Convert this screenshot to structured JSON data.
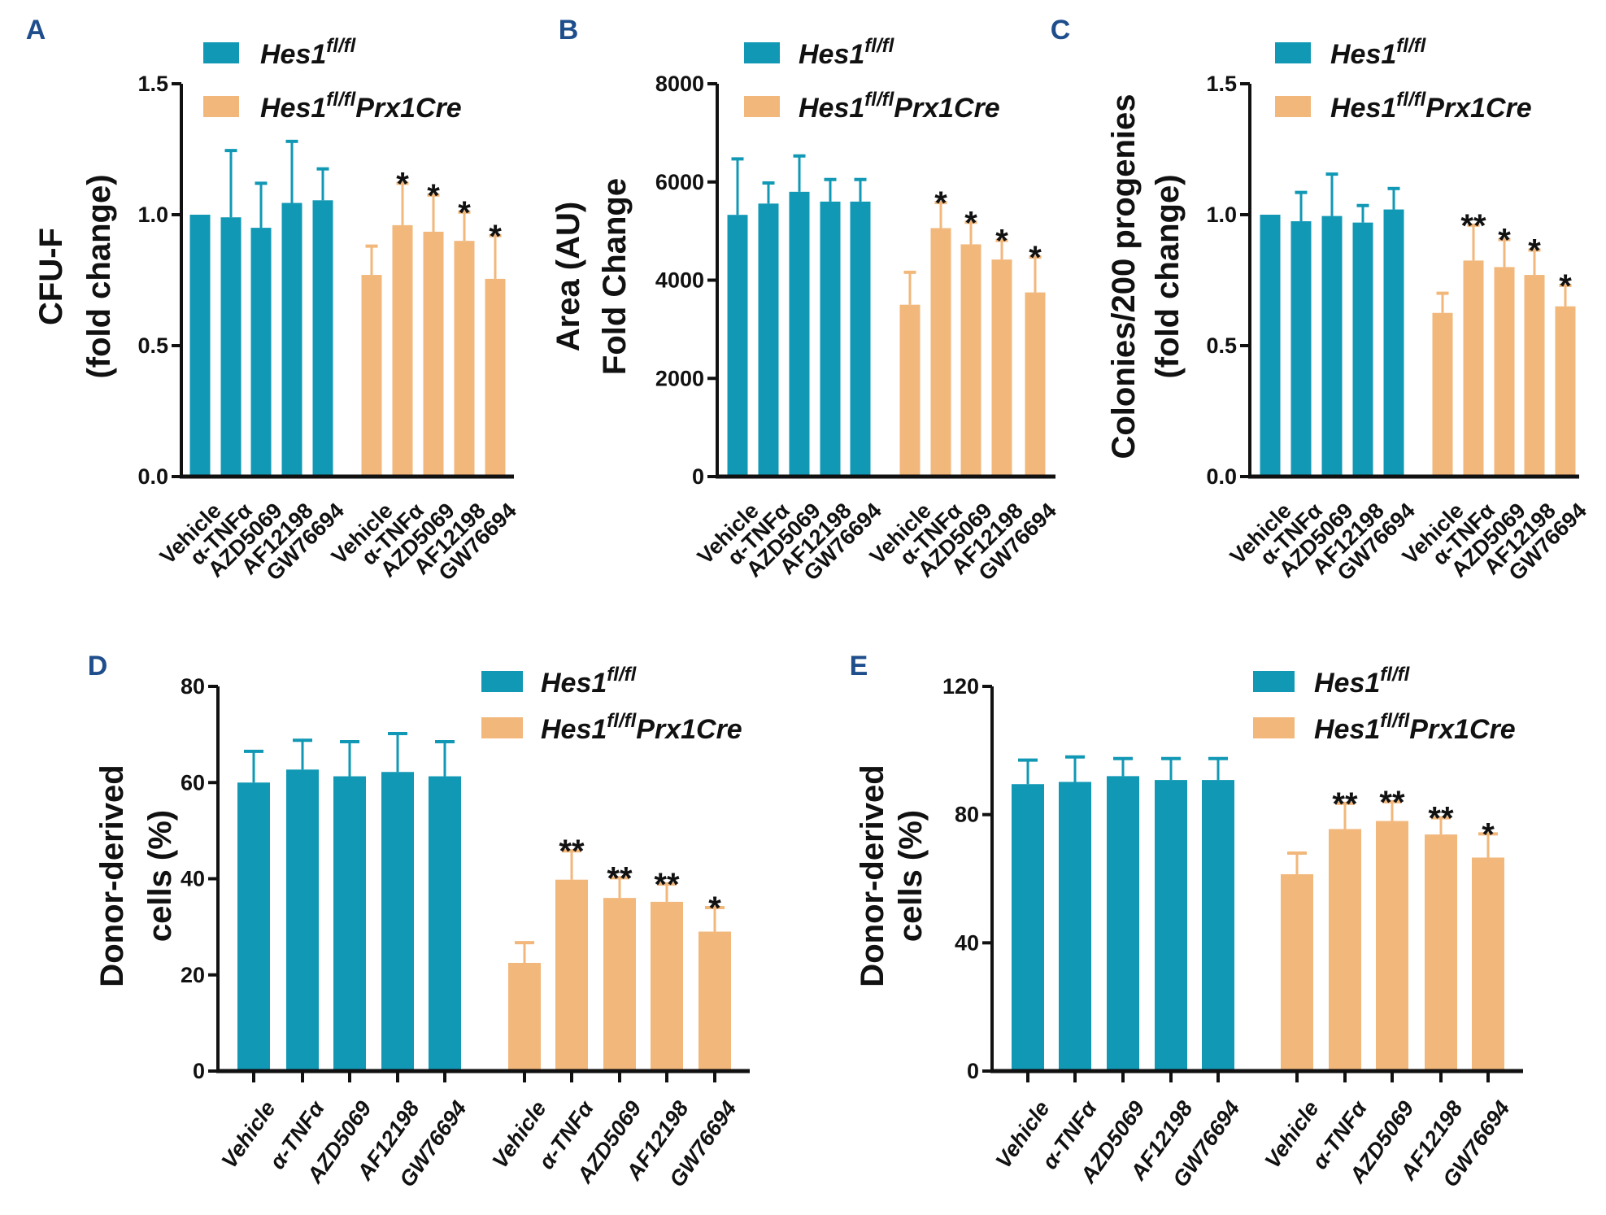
{
  "colors": {
    "hes1_flfl": "#1198b5",
    "hes1_flfl_prx1cre": "#f2b77b",
    "panel_letter": "#1f4e8c"
  },
  "legend": [
    {
      "base": "Hes1",
      "sup": "fl/fl",
      "suffix": ""
    },
    {
      "base": "Hes1",
      "sup": "fl/fl",
      "suffix": "Prx1Cre"
    }
  ],
  "chart_data": [
    {
      "panel": "A",
      "type": "bar",
      "ylabel": [
        "CFU-F",
        "(fold change)"
      ],
      "ylim": [
        0,
        1.5
      ],
      "yticks": [
        "0.0",
        "0.5",
        "1.0",
        "1.5"
      ],
      "ytick_values": [
        0,
        0.5,
        1.0,
        1.5
      ],
      "categories": [
        "Vehicle",
        "α-TNFα",
        "AZD5069",
        "AF12198",
        "GW76694"
      ],
      "series": [
        {
          "name": "Hes1 fl/fl",
          "values": [
            1.0,
            0.99,
            0.95,
            1.045,
            1.055
          ],
          "error_top": [
            1.0,
            1.245,
            1.12,
            1.28,
            1.175
          ],
          "significance": [
            "",
            "",
            "",
            "",
            ""
          ]
        },
        {
          "name": "Hes1 fl/fl Prx1Cre",
          "values": [
            0.77,
            0.96,
            0.935,
            0.9,
            0.755
          ],
          "error_top": [
            0.88,
            1.12,
            1.075,
            1.01,
            0.92
          ],
          "significance": [
            "",
            "*",
            "*",
            "*",
            "*"
          ]
        }
      ],
      "legend_placement": "top"
    },
    {
      "panel": "B",
      "type": "bar",
      "ylabel": [
        "Area (AU)",
        "Fold Change"
      ],
      "ylim": [
        0,
        8000
      ],
      "yticks": [
        "0",
        "2000",
        "4000",
        "6000",
        "8000"
      ],
      "ytick_values": [
        0,
        2000,
        4000,
        6000,
        8000
      ],
      "categories": [
        "Vehicle",
        "α-TNFα",
        "AZD5069",
        "AF12198",
        "GW76694"
      ],
      "series": [
        {
          "name": "Hes1 fl/fl",
          "values": [
            5330,
            5560,
            5800,
            5600,
            5600
          ],
          "error_top": [
            6470,
            5980,
            6530,
            6050,
            6050
          ],
          "significance": [
            "",
            "",
            "",
            "",
            ""
          ]
        },
        {
          "name": "Hes1 fl/fl Prx1Cre",
          "values": [
            3500,
            5060,
            4730,
            4420,
            3750
          ],
          "error_top": [
            4160,
            5580,
            5180,
            4810,
            4470
          ],
          "significance": [
            "",
            "*",
            "*",
            "*",
            "*"
          ]
        }
      ],
      "legend_placement": "top"
    },
    {
      "panel": "C",
      "type": "bar",
      "ylabel": [
        "Colonies/200 progenies",
        "(fold change)"
      ],
      "ylim": [
        0,
        1.5
      ],
      "yticks": [
        "0.0",
        "0.5",
        "1.0",
        "1.5"
      ],
      "ytick_values": [
        0,
        0.5,
        1.0,
        1.5
      ],
      "categories": [
        "Vehicle",
        "α-TNFα",
        "AZD5069",
        "AF12198",
        "GW76694"
      ],
      "series": [
        {
          "name": "Hes1 fl/fl",
          "values": [
            1.0,
            0.975,
            0.995,
            0.97,
            1.02
          ],
          "error_top": [
            1.0,
            1.085,
            1.155,
            1.035,
            1.1
          ],
          "significance": [
            "",
            "",
            "",
            "",
            ""
          ]
        },
        {
          "name": "Hes1 fl/fl Prx1Cre",
          "values": [
            0.625,
            0.825,
            0.8,
            0.77,
            0.65
          ],
          "error_top": [
            0.7,
            0.96,
            0.905,
            0.865,
            0.73
          ],
          "significance": [
            "",
            "**",
            "*",
            "*",
            "*"
          ]
        }
      ],
      "legend_placement": "top"
    },
    {
      "panel": "D",
      "type": "bar",
      "ylabel": [
        "Donor-derived",
        "cells (%)"
      ],
      "ylim": [
        0,
        80
      ],
      "yticks": [
        "0",
        "20",
        "40",
        "60",
        "80"
      ],
      "ytick_values": [
        0,
        20,
        40,
        60,
        80
      ],
      "categories": [
        "Vehicle",
        "α-TNFα",
        "AZD5069",
        "AF12198",
        "GW76694"
      ],
      "series": [
        {
          "name": "Hes1 fl/fl",
          "values": [
            60,
            62.7,
            61.3,
            62.2,
            61.3
          ],
          "error_top": [
            66.5,
            68.8,
            68.5,
            70.2,
            68.5
          ],
          "significance": [
            "",
            "",
            "",
            "",
            ""
          ]
        },
        {
          "name": "Hes1 fl/fl Prx1Cre",
          "values": [
            22.5,
            39.8,
            36,
            35.2,
            29
          ],
          "error_top": [
            26.7,
            45.8,
            40.2,
            38.9,
            34
          ],
          "significance": [
            "",
            "**",
            "**",
            "**",
            "*"
          ]
        }
      ],
      "legend_placement": "top-right"
    },
    {
      "panel": "E",
      "type": "bar",
      "ylabel": [
        "Donor-derived",
        "cells (%)"
      ],
      "ylim": [
        0,
        120
      ],
      "yticks": [
        "0",
        "40",
        "80",
        "120"
      ],
      "ytick_values": [
        0,
        40,
        80,
        120
      ],
      "categories": [
        "Vehicle",
        "α-TNFα",
        "AZD5069",
        "AF12198",
        "GW76694"
      ],
      "series": [
        {
          "name": "Hes1 fl/fl",
          "values": [
            89.5,
            90.2,
            92,
            90.8,
            90.8
          ],
          "error_top": [
            97,
            98,
            97.5,
            97.5,
            97.5
          ],
          "significance": [
            "",
            "",
            "",
            "",
            ""
          ]
        },
        {
          "name": "Hes1 fl/fl Prx1Cre",
          "values": [
            61.4,
            75.5,
            78,
            73.8,
            66.6
          ],
          "error_top": [
            68,
            83.5,
            84,
            79,
            74
          ],
          "significance": [
            "",
            "**",
            "**",
            "**",
            "*"
          ]
        }
      ],
      "legend_placement": "top-right"
    }
  ]
}
